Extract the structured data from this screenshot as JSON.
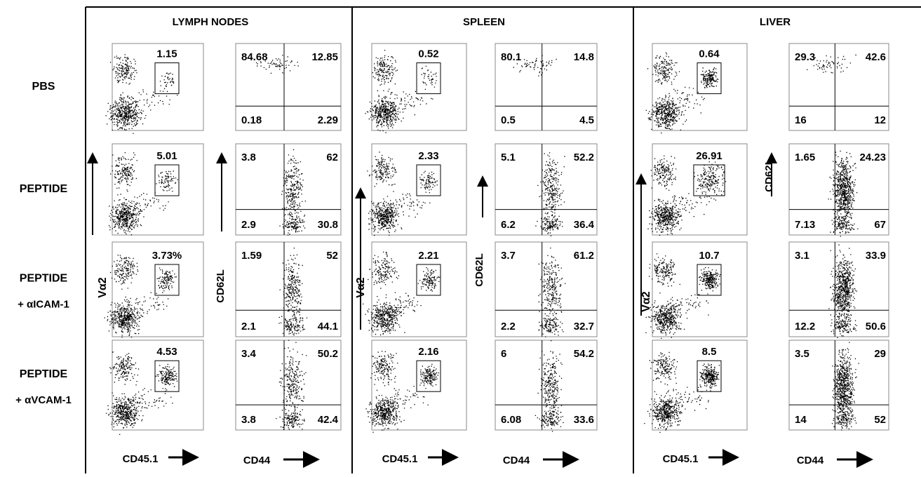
{
  "rows": [
    {
      "label": "PBS"
    },
    {
      "label": "PEPTIDE"
    },
    {
      "label": "PEPTIDE",
      "sublabel": "+ αICAM-1"
    },
    {
      "label": "PEPTIDE",
      "sublabel": "+ αVCAM-1"
    }
  ],
  "axis_labels": {
    "gate_y": "Vα2",
    "quadrant_y": "CD62L",
    "gate_x": "CD45.1",
    "quadrant_x": "CD44"
  },
  "panels": [
    {
      "title": "LYMPH NODES",
      "gates": [
        "1.15",
        "5.01",
        "3.73%",
        "4.53"
      ],
      "quadrants": [
        [
          "84.68",
          "12.85",
          "0.18",
          "2.29"
        ],
        [
          "3.8",
          "62",
          "2.9",
          "30.8"
        ],
        [
          "1.59",
          "52",
          "2.1",
          "44.1"
        ],
        [
          "3.4",
          "50.2",
          "3.8",
          "42.4"
        ]
      ]
    },
    {
      "title": "SPLEEN",
      "gates": [
        "0.52",
        "2.33",
        "2.21",
        "2.16"
      ],
      "quadrants": [
        [
          "80.1",
          "14.8",
          "0.5",
          "4.5"
        ],
        [
          "5.1",
          "52.2",
          "6.2",
          "36.4"
        ],
        [
          "3.7",
          "61.2",
          "2.2",
          "32.7"
        ],
        [
          "6",
          "54.2",
          "6.08",
          "33.6"
        ]
      ]
    },
    {
      "title": "LIVER",
      "gates": [
        "0.64",
        "26.91",
        "10.7",
        "8.5"
      ],
      "quadrants": [
        [
          "29.3",
          "42.6",
          "16",
          "12"
        ],
        [
          "1.65",
          "24.23",
          "7.13",
          "67"
        ],
        [
          "3.1",
          "33.9",
          "12.2",
          "50.6"
        ],
        [
          "3.5",
          "29",
          "14",
          "52"
        ]
      ]
    }
  ]
}
